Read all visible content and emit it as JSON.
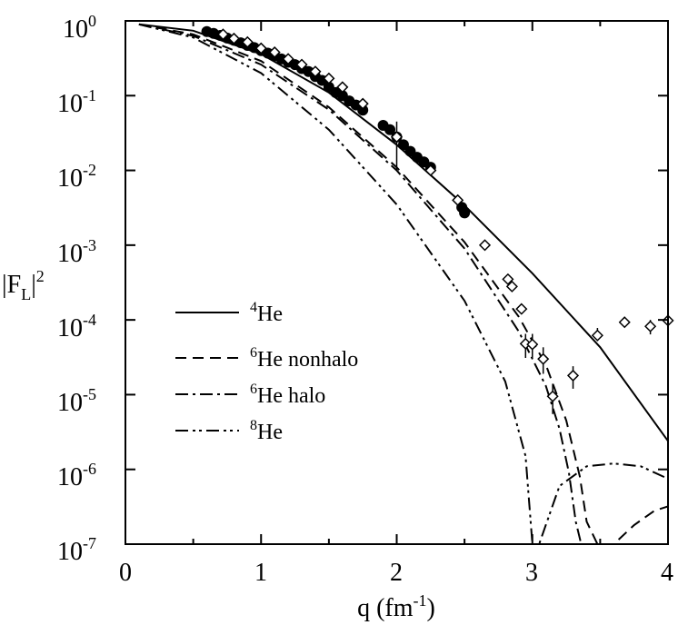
{
  "chart_data": {
    "type": "line",
    "xlabel": {
      "main": "q (fm",
      "exp": "-1",
      "close": ")"
    },
    "ylabel": {
      "main": "|F",
      "sub": "L",
      "close": "|",
      "exp": "2"
    },
    "xlim": [
      0,
      4
    ],
    "ylim": [
      1e-07,
      1
    ],
    "yscale": "log",
    "grid": false,
    "legend_position": "lower-left",
    "x_ticks": [
      "0",
      "1",
      "2",
      "3",
      "4"
    ],
    "y_ticks": [
      {
        "base": "10",
        "exp": "0"
      },
      {
        "base": "10",
        "exp": "-1"
      },
      {
        "base": "10",
        "exp": "-2"
      },
      {
        "base": "10",
        "exp": "-3"
      },
      {
        "base": "10",
        "exp": "-4"
      },
      {
        "base": "10",
        "exp": "-5"
      },
      {
        "base": "10",
        "exp": "-6"
      },
      {
        "base": "10",
        "exp": "-7"
      }
    ],
    "series": [
      {
        "name": "He",
        "name_sup": "4",
        "style": "solid",
        "x": [
          0.1,
          0.5,
          1.0,
          1.5,
          2.0,
          2.5,
          3.0,
          3.5,
          4.0
        ],
        "y": [
          0.9,
          0.74,
          0.36,
          0.11,
          0.022,
          0.0034,
          0.00042,
          4.3e-05,
          2.4e-06
        ]
      },
      {
        "name": "He nonhalo",
        "name_sup": "6",
        "style": "dashed",
        "x": [
          0.1,
          0.5,
          1.0,
          1.5,
          2.0,
          2.5,
          2.9,
          3.1,
          3.25,
          3.35,
          3.4,
          3.48,
          3.6,
          3.75,
          3.9,
          4.0
        ],
        "y": [
          0.9,
          0.66,
          0.29,
          0.07,
          0.011,
          0.0011,
          0.00011,
          2.5e-05,
          4.5e-06,
          8e-07,
          2e-07,
          1e-07,
          1e-07,
          1.8e-07,
          2.8e-07,
          3.2e-07
        ]
      },
      {
        "name": "He halo",
        "name_sup": "6",
        "style": "dashdot",
        "x": [
          0.1,
          0.5,
          1.0,
          1.5,
          2.0,
          2.5,
          2.9,
          3.1,
          3.2,
          3.27,
          3.32,
          3.36,
          3.45,
          3.6,
          3.8,
          4.0
        ],
        "y": [
          0.9,
          0.63,
          0.26,
          0.065,
          0.01,
          0.0009,
          7e-05,
          1.3e-05,
          3.5e-06,
          9e-07,
          2e-07,
          1e-07,
          1e-07,
          1e-07,
          1e-07,
          1e-07
        ]
      },
      {
        "name": "He",
        "name_sup": "8",
        "style": "dashdotdot",
        "x": [
          0.1,
          0.5,
          1.0,
          1.5,
          2.0,
          2.5,
          2.8,
          2.95,
          3.0,
          3.05,
          3.2,
          3.4,
          3.6,
          3.8,
          4.0
        ],
        "y": [
          0.9,
          0.6,
          0.2,
          0.035,
          0.0035,
          0.00018,
          1.5e-05,
          1.5e-06,
          1e-07,
          1e-07,
          6e-07,
          1.1e-06,
          1.2e-06,
          1.1e-06,
          7.5e-07
        ]
      }
    ],
    "data_filled": {
      "x": [
        0.6,
        0.65,
        0.7,
        0.75,
        0.8,
        0.85,
        0.9,
        0.95,
        1.0,
        1.05,
        1.1,
        1.15,
        1.2,
        1.25,
        1.3,
        1.35,
        1.4,
        1.45,
        1.5,
        1.55,
        1.6,
        1.65,
        1.7,
        1.75,
        1.9,
        1.95,
        2.0,
        2.05,
        2.1,
        2.15,
        2.2,
        2.25,
        2.48,
        2.5
      ],
      "y": [
        0.72,
        0.68,
        0.64,
        0.59,
        0.55,
        0.51,
        0.47,
        0.44,
        0.4,
        0.37,
        0.34,
        0.31,
        0.28,
        0.26,
        0.23,
        0.21,
        0.18,
        0.16,
        0.13,
        0.11,
        0.1,
        0.085,
        0.075,
        0.064,
        0.04,
        0.035,
        0.028,
        0.022,
        0.018,
        0.015,
        0.013,
        0.011,
        0.0032,
        0.0027
      ]
    },
    "data_open": {
      "x": [
        0.72,
        0.8,
        0.9,
        1.0,
        1.1,
        1.2,
        1.3,
        1.4,
        1.5,
        1.6,
        1.75,
        2.0,
        2.25,
        2.45,
        2.65,
        2.82,
        2.85,
        2.92,
        2.95,
        3.0,
        3.08,
        3.15,
        3.3,
        3.48,
        3.68,
        3.87,
        4.0
      ],
      "y": [
        0.66,
        0.58,
        0.52,
        0.43,
        0.38,
        0.31,
        0.26,
        0.21,
        0.17,
        0.13,
        0.078,
        0.028,
        0.01,
        0.004,
        0.001,
        0.00035,
        0.00028,
        0.00014,
        4.8e-05,
        4.7e-05,
        3e-05,
        9.5e-06,
        1.8e-05,
        6.2e-05,
        9.3e-05,
        8.2e-05,
        9.8e-05
      ],
      "err_low": [
        null,
        null,
        null,
        null,
        null,
        null,
        null,
        null,
        null,
        null,
        null,
        0.01,
        null,
        null,
        null,
        null,
        null,
        null,
        3.1e-05,
        3.1e-05,
        1.9e-05,
        5.5e-06,
        1.2e-05,
        5.2e-05,
        null,
        6.4e-05,
        null
      ],
      "err_high": [
        null,
        null,
        null,
        null,
        null,
        null,
        null,
        null,
        null,
        null,
        null,
        0.045,
        null,
        null,
        null,
        null,
        null,
        null,
        6.5e-05,
        6.5e-05,
        4.3e-05,
        1.4e-05,
        2.4e-05,
        7.8e-05,
        null,
        0.0001,
        null
      ]
    }
  }
}
